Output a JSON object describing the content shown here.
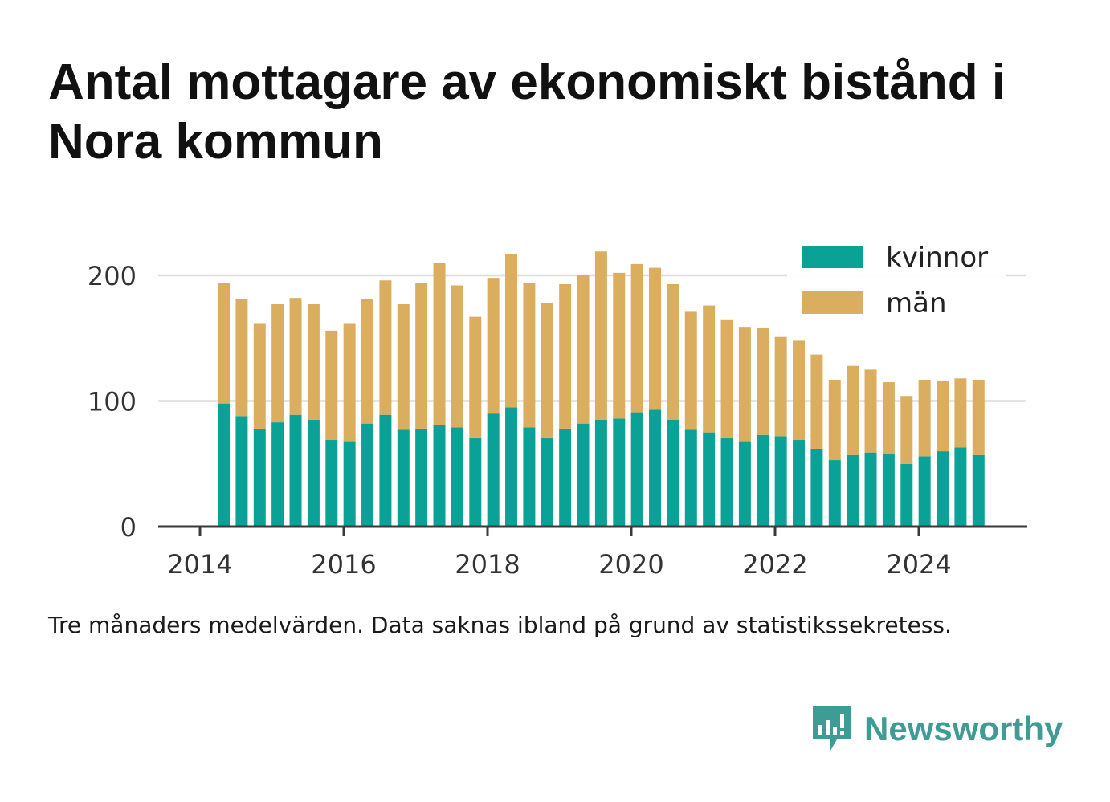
{
  "title": "Antal mottagare av ekonomiskt bistånd i Nora kommun",
  "caption": "Tre månaders medelvärden. Data saknas ibland på grund av statistikssekretess.",
  "brand": {
    "name": "Newsworthy",
    "color": "#3f9c95"
  },
  "chart_data": {
    "type": "bar",
    "stacked": true,
    "x_unit": "year",
    "x_start": 2014.33,
    "x_step": 0.25,
    "xticks": [
      "2014",
      "2016",
      "2018",
      "2020",
      "2022",
      "2024"
    ],
    "xtick_values": [
      2014,
      2016,
      2018,
      2020,
      2022,
      2024
    ],
    "yticks": [
      "0",
      "100",
      "200"
    ],
    "ytick_values": [
      0,
      100,
      200
    ],
    "ylim": [
      0,
      225
    ],
    "grid": true,
    "legend_position": "top-right",
    "series": [
      {
        "name": "kvinnor",
        "color": "#0aa196",
        "values": [
          98,
          88,
          78,
          83,
          89,
          85,
          69,
          68,
          82,
          89,
          77,
          78,
          81,
          79,
          71,
          90,
          95,
          79,
          71,
          78,
          82,
          85,
          86,
          91,
          93,
          85,
          77,
          75,
          71,
          68,
          73,
          72,
          69,
          62,
          53,
          57,
          59,
          58,
          50,
          56,
          60,
          63,
          57
        ]
      },
      {
        "name": "män",
        "color": "#dbae5f",
        "values": [
          96,
          93,
          84,
          94,
          93,
          92,
          87,
          94,
          99,
          107,
          100,
          116,
          129,
          113,
          96,
          108,
          122,
          115,
          107,
          115,
          118,
          134,
          116,
          118,
          113,
          108,
          94,
          101,
          94,
          91,
          85,
          79,
          79,
          75,
          64,
          71,
          66,
          57,
          54,
          61,
          56,
          55,
          60
        ]
      }
    ]
  }
}
